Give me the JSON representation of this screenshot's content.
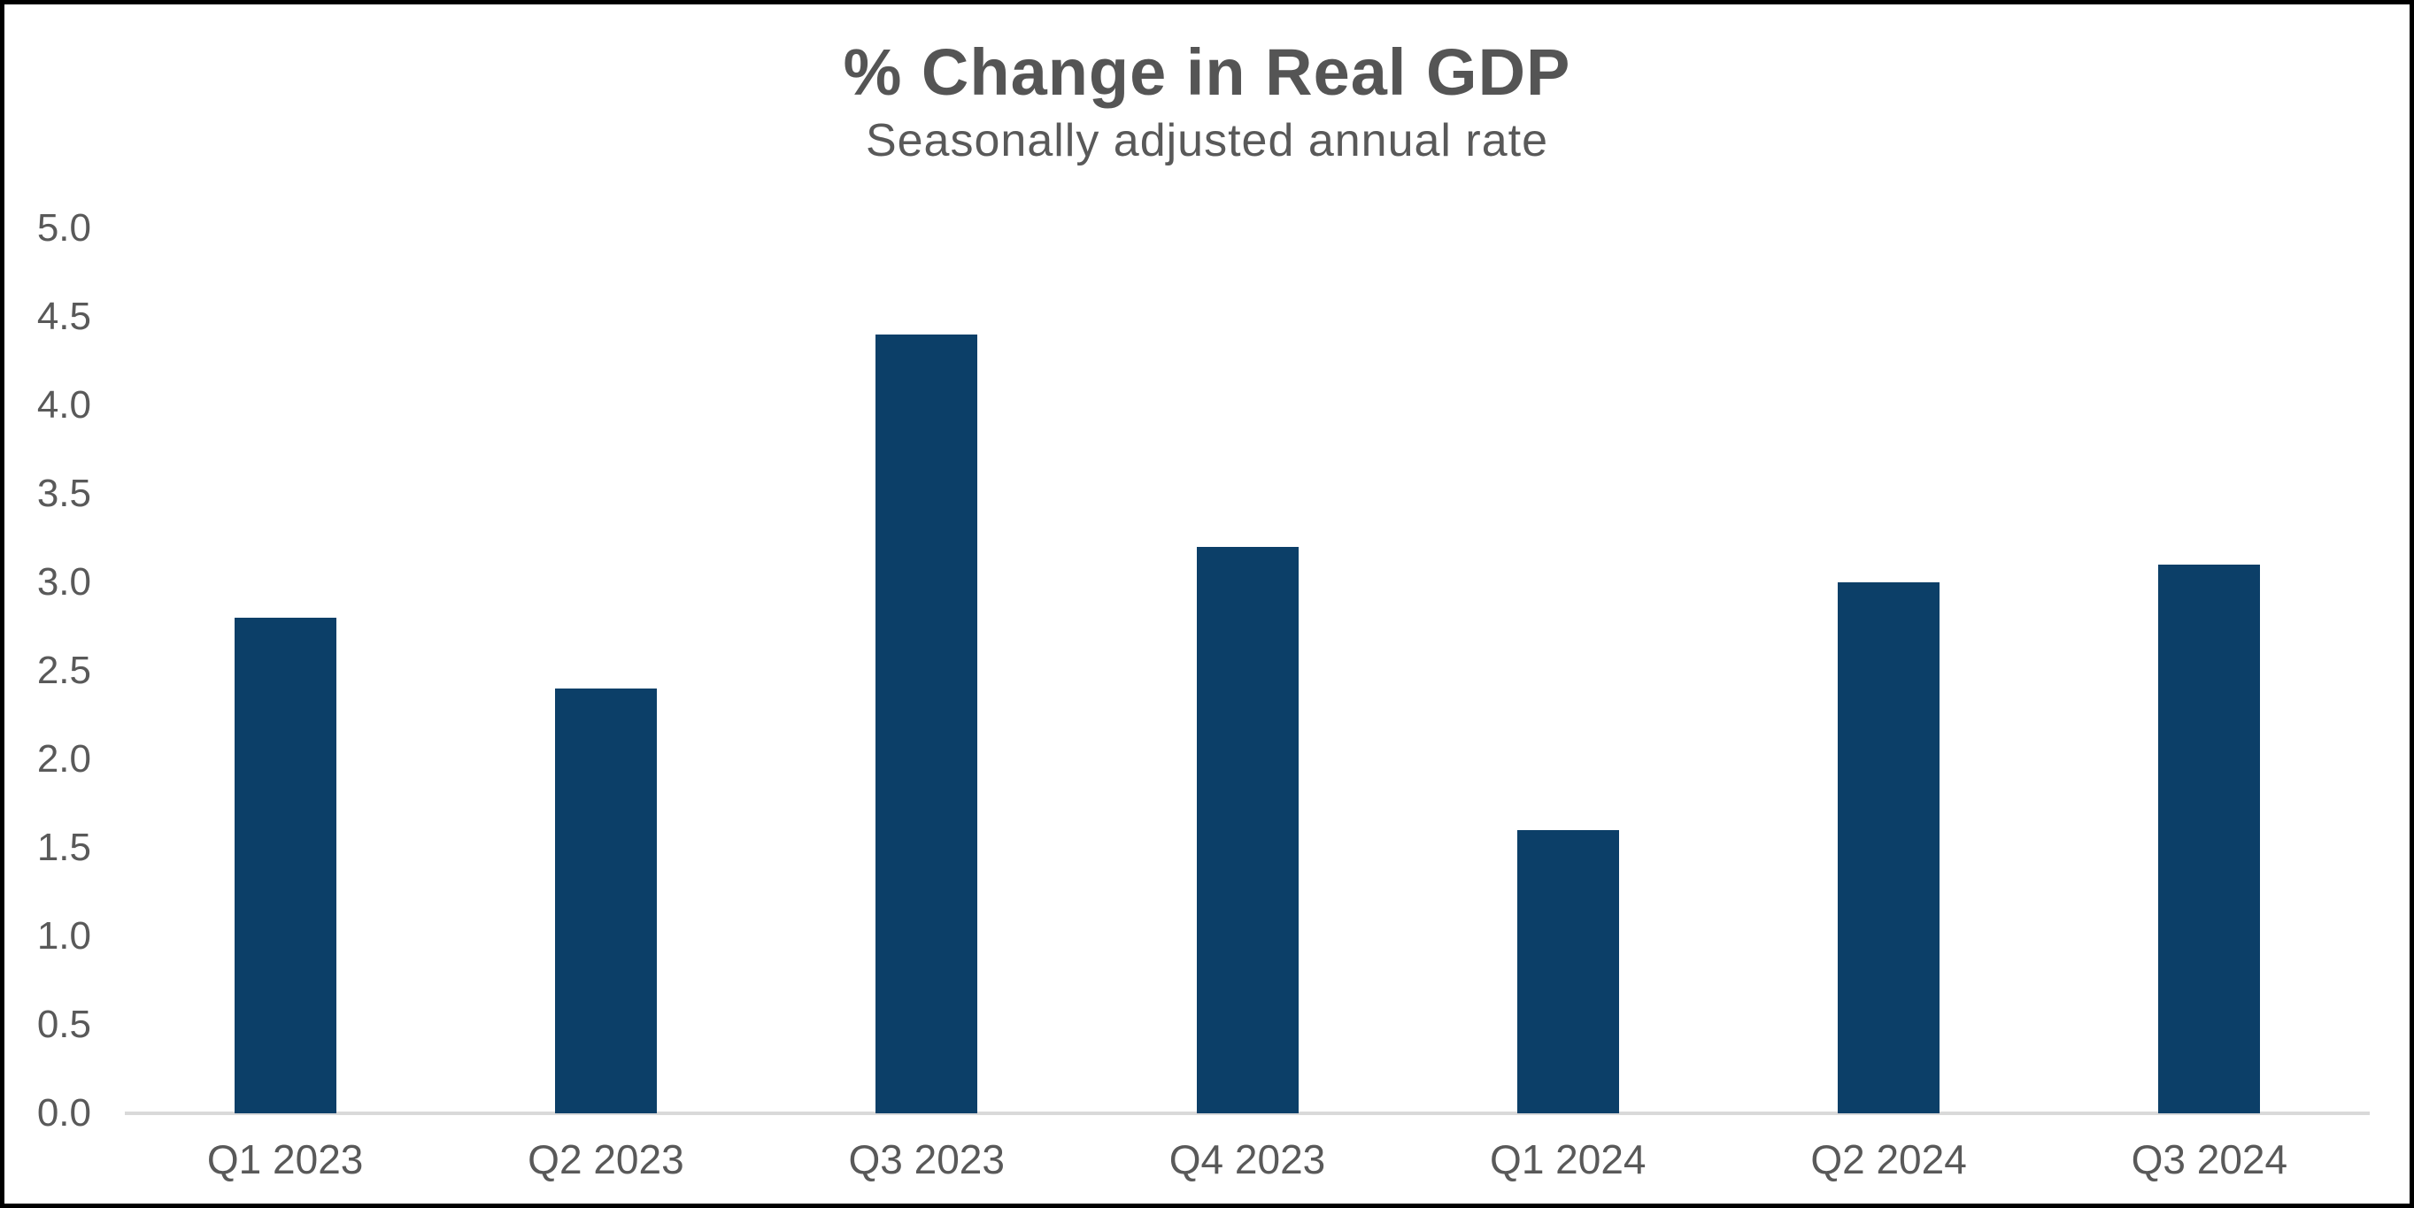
{
  "chart_data": {
    "type": "bar",
    "title": "% Change in Real GDP",
    "subtitle": "Seasonally adjusted annual rate",
    "categories": [
      "Q1 2023",
      "Q2 2023",
      "Q3 2023",
      "Q4 2023",
      "Q1 2024",
      "Q2 2024",
      "Q3 2024"
    ],
    "values": [
      2.8,
      2.4,
      4.4,
      3.2,
      1.6,
      3.0,
      3.1
    ],
    "ylim": [
      0.0,
      5.0
    ],
    "ytick_labels": [
      "0.0",
      "0.5",
      "1.0",
      "1.5",
      "2.0",
      "2.5",
      "3.0",
      "3.5",
      "4.0",
      "4.5",
      "5.0"
    ],
    "xlabel": "",
    "ylabel": "",
    "grid": false,
    "legend_position": "none",
    "colors": {
      "bar": "#0c3f68",
      "title_text": "#555555",
      "axis_text": "#595959",
      "axis_line": "#d9d9d9",
      "frame_border": "#000000",
      "background": "#ffffff"
    }
  }
}
